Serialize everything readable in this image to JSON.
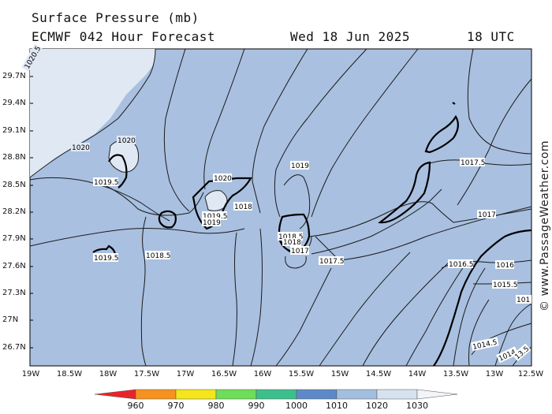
{
  "header": {
    "title": "Surface Pressure (mb)",
    "model_forecast": "ECMWF 042 Hour Forecast",
    "date": "Wed 18 Jun 2025",
    "time": "18 UTC"
  },
  "credit": "© www.PassageWeather.com",
  "axes": {
    "lat_labels": [
      "29.7N",
      "29.4N",
      "29.1N",
      "28.8N",
      "28.5N",
      "28.2N",
      "27.9N",
      "27.6N",
      "27.3N",
      "27N",
      "26.7N"
    ],
    "lon_labels": [
      "19W",
      "18.5W",
      "18W",
      "17.5W",
      "17W",
      "16.5W",
      "16W",
      "15.5W",
      "15W",
      "14.5W",
      "14W",
      "13.5W",
      "13W",
      "12.5W"
    ]
  },
  "isobar_labels": [
    {
      "text": "1020.5",
      "id": "a"
    },
    {
      "text": "1020",
      "id": "b"
    },
    {
      "text": "1020",
      "id": "c"
    },
    {
      "text": "1019.5",
      "id": "d"
    },
    {
      "text": "1020",
      "id": "e"
    },
    {
      "text": "1019",
      "id": "f"
    },
    {
      "text": "1019.5",
      "id": "g"
    },
    {
      "text": "1019",
      "id": "h"
    },
    {
      "text": "1018",
      "id": "i"
    },
    {
      "text": "1018.5",
      "id": "j"
    },
    {
      "text": "1018",
      "id": "k"
    },
    {
      "text": "1017",
      "id": "l"
    },
    {
      "text": "1017.5",
      "id": "m"
    },
    {
      "text": "1019.5",
      "id": "n"
    },
    {
      "text": "1018.5",
      "id": "o"
    },
    {
      "text": "1017.5",
      "id": "p"
    },
    {
      "text": "1017",
      "id": "q"
    },
    {
      "text": "1016.5",
      "id": "r"
    },
    {
      "text": "1016",
      "id": "s"
    },
    {
      "text": "1015.5",
      "id": "t"
    },
    {
      "text": "101",
      "id": "u"
    },
    {
      "text": "1014.5",
      "id": "v"
    },
    {
      "text": "1014",
      "id": "w"
    },
    {
      "text": "13.5",
      "id": "x"
    }
  ],
  "colorbar": {
    "ticks": [
      "960",
      "970",
      "980",
      "990",
      "1000",
      "1010",
      "1020",
      "1030"
    ],
    "colors": [
      "#e8242a",
      "#f7921e",
      "#f5e51b",
      "#6fdc5a",
      "#3cbf8c",
      "#5f88c8",
      "#a4bedf",
      "#d7e2f1"
    ]
  },
  "fill_colors": {
    "band_1015_1020": "#a9c0e0",
    "band_1020_1025": "#e0e8f4"
  }
}
